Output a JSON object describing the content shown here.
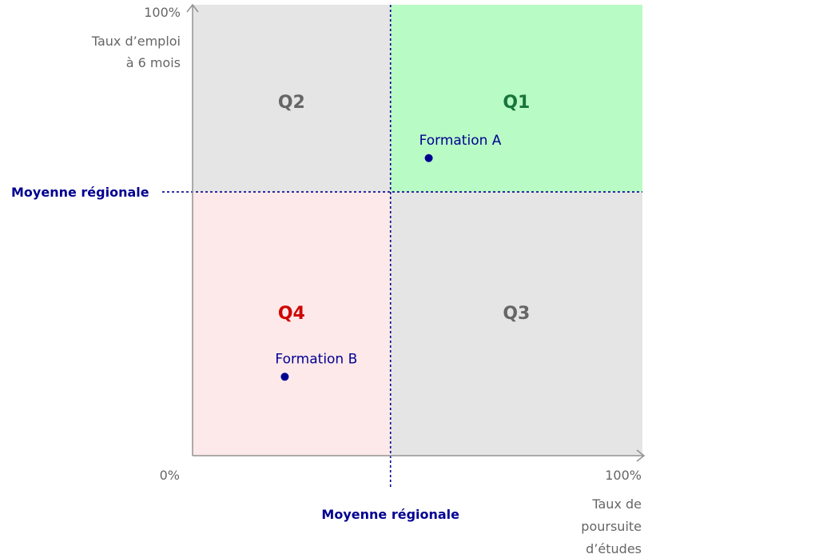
{
  "chart_data": {
    "type": "scatter",
    "x_axis": {
      "title_lines": [
        "Taux de",
        "poursuite",
        "d’études"
      ],
      "min_label": "0%",
      "max_label": "100%",
      "range": [
        0,
        100
      ]
    },
    "y_axis": {
      "title_lines": [
        "Taux d’emploi",
        "à 6 mois"
      ],
      "max_label": "100%",
      "range": [
        0,
        100
      ]
    },
    "mean_lines": {
      "x": 44,
      "y": 58.5,
      "x_label": "Moyenne régionale",
      "y_label": "Moyenne régionale",
      "color": "#000091"
    },
    "quadrants": [
      {
        "label": "Q1",
        "fill": "#b8fbc4",
        "text_color": "#18753c"
      },
      {
        "label": "Q2",
        "fill": "#e5e5e5",
        "text_color": "#666666"
      },
      {
        "label": "Q3",
        "fill": "#e5e5e5",
        "text_color": "#666666"
      },
      {
        "label": "Q4",
        "fill": "#fee9ea",
        "text_color": "#ce0500"
      }
    ],
    "points": [
      {
        "label": "Formation A",
        "x": 52.5,
        "y": 66
      },
      {
        "label": "Formation B",
        "x": 20.5,
        "y": 17.5
      }
    ],
    "point_color": "#000091",
    "grid": false
  }
}
